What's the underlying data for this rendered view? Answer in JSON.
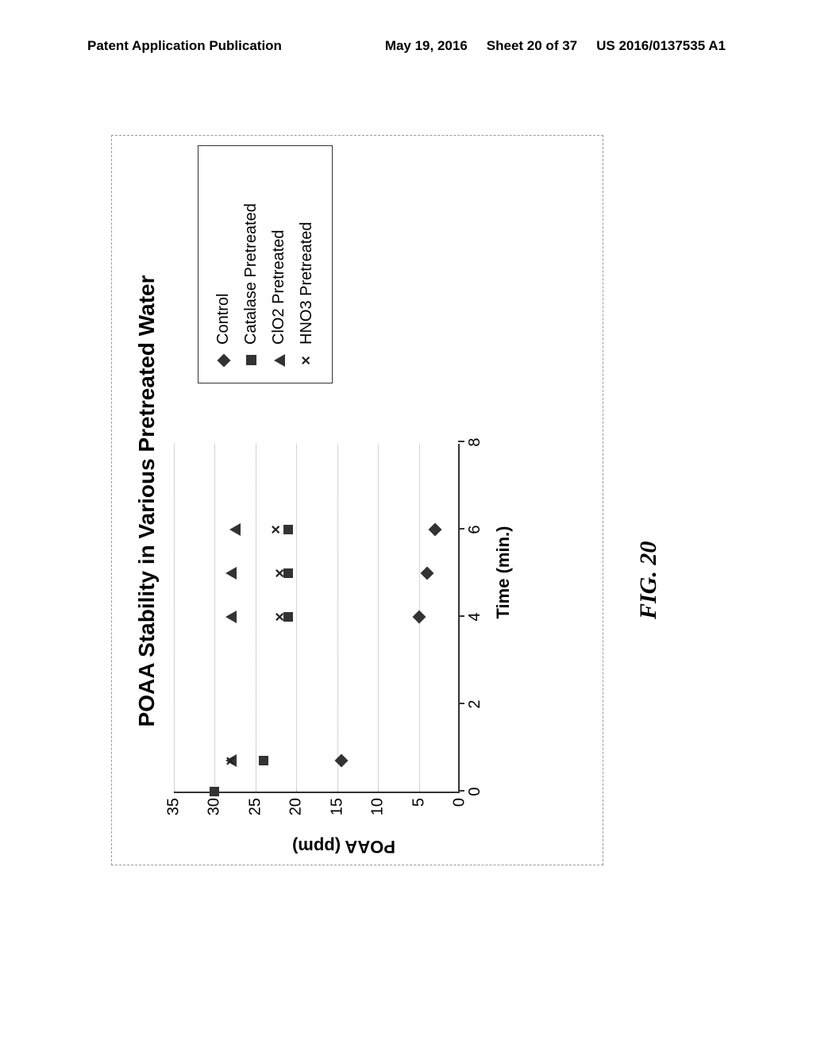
{
  "header": {
    "left": "Patent Application Publication",
    "date": "May 19, 2016",
    "sheet": "Sheet 20 of 37",
    "pubno": "US 2016/0137535 A1"
  },
  "figure_label": "FIG. 20",
  "chart": {
    "type": "scatter",
    "title": "POAA Stability in Various Pretreated Water",
    "xlabel": "Time (min.)",
    "ylabel": "POAA (ppm)",
    "xlim": [
      0,
      8
    ],
    "ylim": [
      0,
      35
    ],
    "xticks": [
      0,
      2,
      4,
      6,
      8
    ],
    "yticks": [
      0,
      5,
      10,
      15,
      20,
      25,
      30,
      35
    ],
    "grid_color": "#aaaaaa",
    "axis_color": "#333333",
    "background_color": "#ffffff",
    "title_fontsize": 28,
    "label_fontsize": 22,
    "tick_fontsize": 20,
    "axis_linewidth": 2,
    "marker_size": 12,
    "series": [
      {
        "name": "Control",
        "marker": "diamond",
        "color": "#333333",
        "points": [
          [
            0.7,
            14.5
          ],
          [
            4,
            5
          ],
          [
            5,
            4
          ],
          [
            6,
            3
          ]
        ]
      },
      {
        "name": "Catalase Pretreated",
        "marker": "square",
        "color": "#333333",
        "points": [
          [
            0,
            30
          ],
          [
            0.7,
            24
          ],
          [
            4,
            21
          ],
          [
            5,
            21
          ],
          [
            6,
            21
          ]
        ]
      },
      {
        "name": "ClO2 Pretreated",
        "marker": "triangle",
        "color": "#333333",
        "points": [
          [
            0.7,
            28
          ],
          [
            4,
            28
          ],
          [
            5,
            28
          ],
          [
            6,
            27.5
          ]
        ]
      },
      {
        "name": "HNO3 Pretreated",
        "marker": "cross",
        "color": "#222222",
        "points": [
          [
            0.7,
            28
          ],
          [
            4,
            22
          ],
          [
            5,
            22
          ],
          [
            6,
            22.5
          ]
        ]
      }
    ]
  }
}
